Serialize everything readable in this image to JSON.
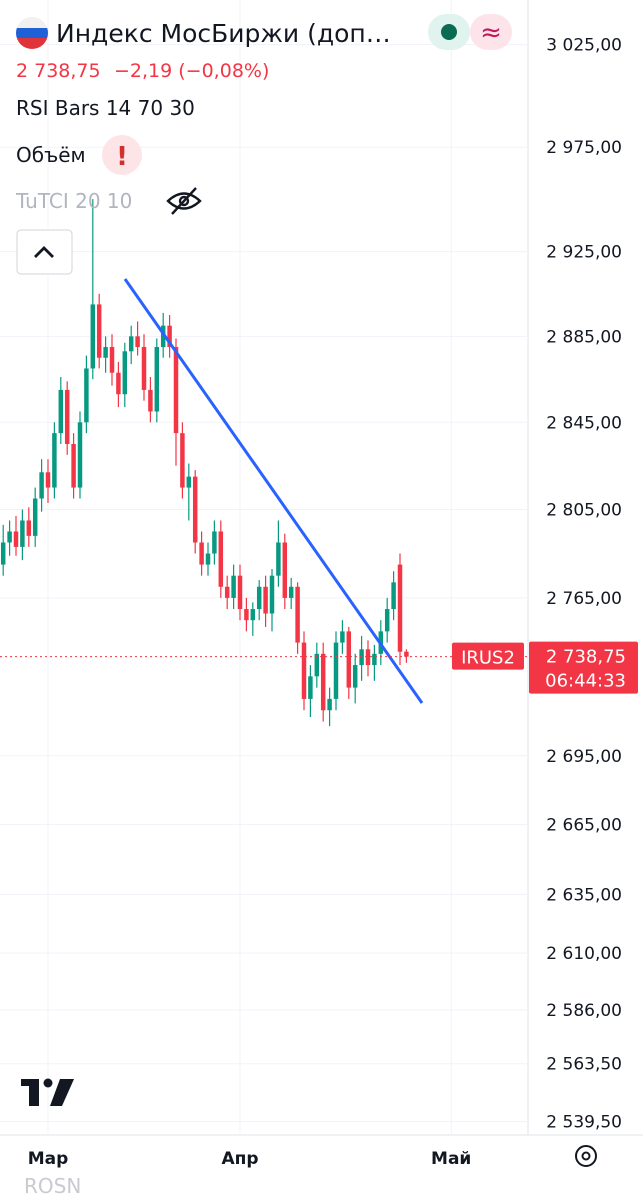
{
  "header": {
    "title": "Индекс МосБиржи (доп…",
    "price": "2 738,75",
    "change": "−2,19 (−0,08%)",
    "indicators": [
      "RSI Bars 14 70 30",
      "Объём",
      "TuTCI 20 10"
    ]
  },
  "chart_data": {
    "type": "candlestick",
    "log_scale": true,
    "grid": true,
    "up_color": "#089981",
    "down_color": "#f23645",
    "xlim": [
      -0.5,
      82
    ],
    "xticks": [
      {
        "value": 7,
        "label": "Мар"
      },
      {
        "value": 37,
        "label": "Апр"
      },
      {
        "value": 70,
        "label": "Май"
      }
    ],
    "ylim": [
      2534,
      3047
    ],
    "yticks": [
      {
        "value": 3025,
        "label": "3 025,00"
      },
      {
        "value": 2975,
        "label": "2 975,00"
      },
      {
        "value": 2925,
        "label": "2 925,00"
      },
      {
        "value": 2885,
        "label": "2 885,00"
      },
      {
        "value": 2845,
        "label": "2 845,00"
      },
      {
        "value": 2805,
        "label": "2 805,00"
      },
      {
        "value": 2765,
        "label": "2 765,00"
      },
      {
        "value": 2695,
        "label": "2 695,00"
      },
      {
        "value": 2665,
        "label": "2 665,00"
      },
      {
        "value": 2635,
        "label": "2 635,00"
      },
      {
        "value": 2610,
        "label": "2 610,00"
      },
      {
        "value": 2586,
        "label": "2 586,00"
      },
      {
        "value": 2563.5,
        "label": "2 563,50"
      },
      {
        "value": 2539.5,
        "label": "2 539,50"
      }
    ],
    "open": [
      2780,
      2790,
      2795,
      2788,
      2800,
      2793,
      2810,
      2822,
      2815,
      2840,
      2860,
      2835,
      2815,
      2845,
      2870,
      2900,
      2875,
      2880,
      2868,
      2858,
      2878,
      2885,
      2880,
      2860,
      2850,
      2880,
      2890,
      2880,
      2840,
      2815,
      2820,
      2790,
      2780,
      2785,
      2795,
      2770,
      2765,
      2775,
      2760,
      2755,
      2760,
      2770,
      2758,
      2775,
      2790,
      2765,
      2770,
      2745,
      2720,
      2730,
      2740,
      2715,
      2720,
      2745,
      2750,
      2725,
      2735,
      2742,
      2735,
      2740,
      2750,
      2760,
      2780,
      2740.94
    ],
    "high": [
      2798,
      2800,
      2802,
      2805,
      2806,
      2815,
      2828,
      2828,
      2845,
      2866,
      2864,
      2840,
      2850,
      2876,
      2950,
      2905,
      2885,
      2886,
      2873,
      2882,
      2890,
      2892,
      2886,
      2866,
      2884,
      2896,
      2895,
      2884,
      2845,
      2826,
      2823,
      2795,
      2790,
      2800,
      2800,
      2775,
      2780,
      2780,
      2765,
      2763,
      2773,
      2775,
      2778,
      2800,
      2794,
      2774,
      2772,
      2750,
      2735,
      2745,
      2745,
      2725,
      2750,
      2755,
      2752,
      2740,
      2748,
      2746,
      2744,
      2755,
      2765,
      2777,
      2785,
      2742
    ],
    "low": [
      2775,
      2784,
      2784,
      2782,
      2788,
      2788,
      2804,
      2808,
      2810,
      2835,
      2830,
      2810,
      2810,
      2840,
      2865,
      2870,
      2868,
      2862,
      2852,
      2852,
      2872,
      2876,
      2855,
      2845,
      2845,
      2875,
      2875,
      2825,
      2810,
      2800,
      2785,
      2775,
      2775,
      2780,
      2765,
      2760,
      2760,
      2755,
      2750,
      2748,
      2755,
      2752,
      2750,
      2770,
      2760,
      2760,
      2740,
      2715,
      2712,
      2725,
      2710,
      2708,
      2715,
      2740,
      2720,
      2718,
      2728,
      2730,
      2728,
      2735,
      2745,
      2755,
      2735,
      2736
    ],
    "close": [
      2790,
      2795,
      2788,
      2800,
      2793,
      2810,
      2822,
      2815,
      2840,
      2860,
      2835,
      2815,
      2845,
      2870,
      2900,
      2875,
      2880,
      2868,
      2858,
      2878,
      2885,
      2880,
      2860,
      2850,
      2880,
      2890,
      2880,
      2840,
      2815,
      2820,
      2790,
      2780,
      2785,
      2795,
      2770,
      2765,
      2775,
      2760,
      2755,
      2760,
      2770,
      2758,
      2775,
      2790,
      2765,
      2770,
      2745,
      2720,
      2730,
      2740,
      2715,
      2720,
      2745,
      2750,
      2725,
      2735,
      2742,
      2735,
      2740,
      2750,
      2760,
      2772,
      2740.94,
      2738.75
    ],
    "last_price": {
      "value": 2738.75,
      "label": "2 738,75"
    },
    "symbol": "IRUS2",
    "countdown": "06:44:33"
  },
  "footer": {
    "watch": "ROSN"
  }
}
